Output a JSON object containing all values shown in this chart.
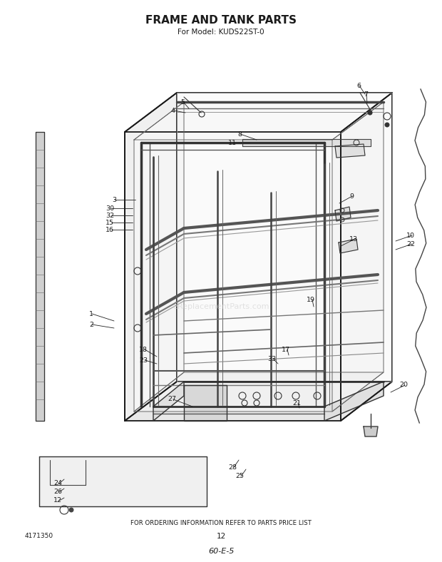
{
  "title": "FRAME AND TANK PARTS",
  "subtitle": "For Model: KUDS22ST-0",
  "footer_text": "FOR ORDERING INFORMATION REFER TO PARTS PRICE LIST",
  "part_number": "4171350",
  "page_number": "12",
  "code": "60-E-5",
  "bg_color": "#ffffff",
  "lc": "#1a1a1a",
  "watermark": "eReplacementParts.com",
  "fig_w": 6.2,
  "fig_h": 7.88,
  "dpi": 100
}
